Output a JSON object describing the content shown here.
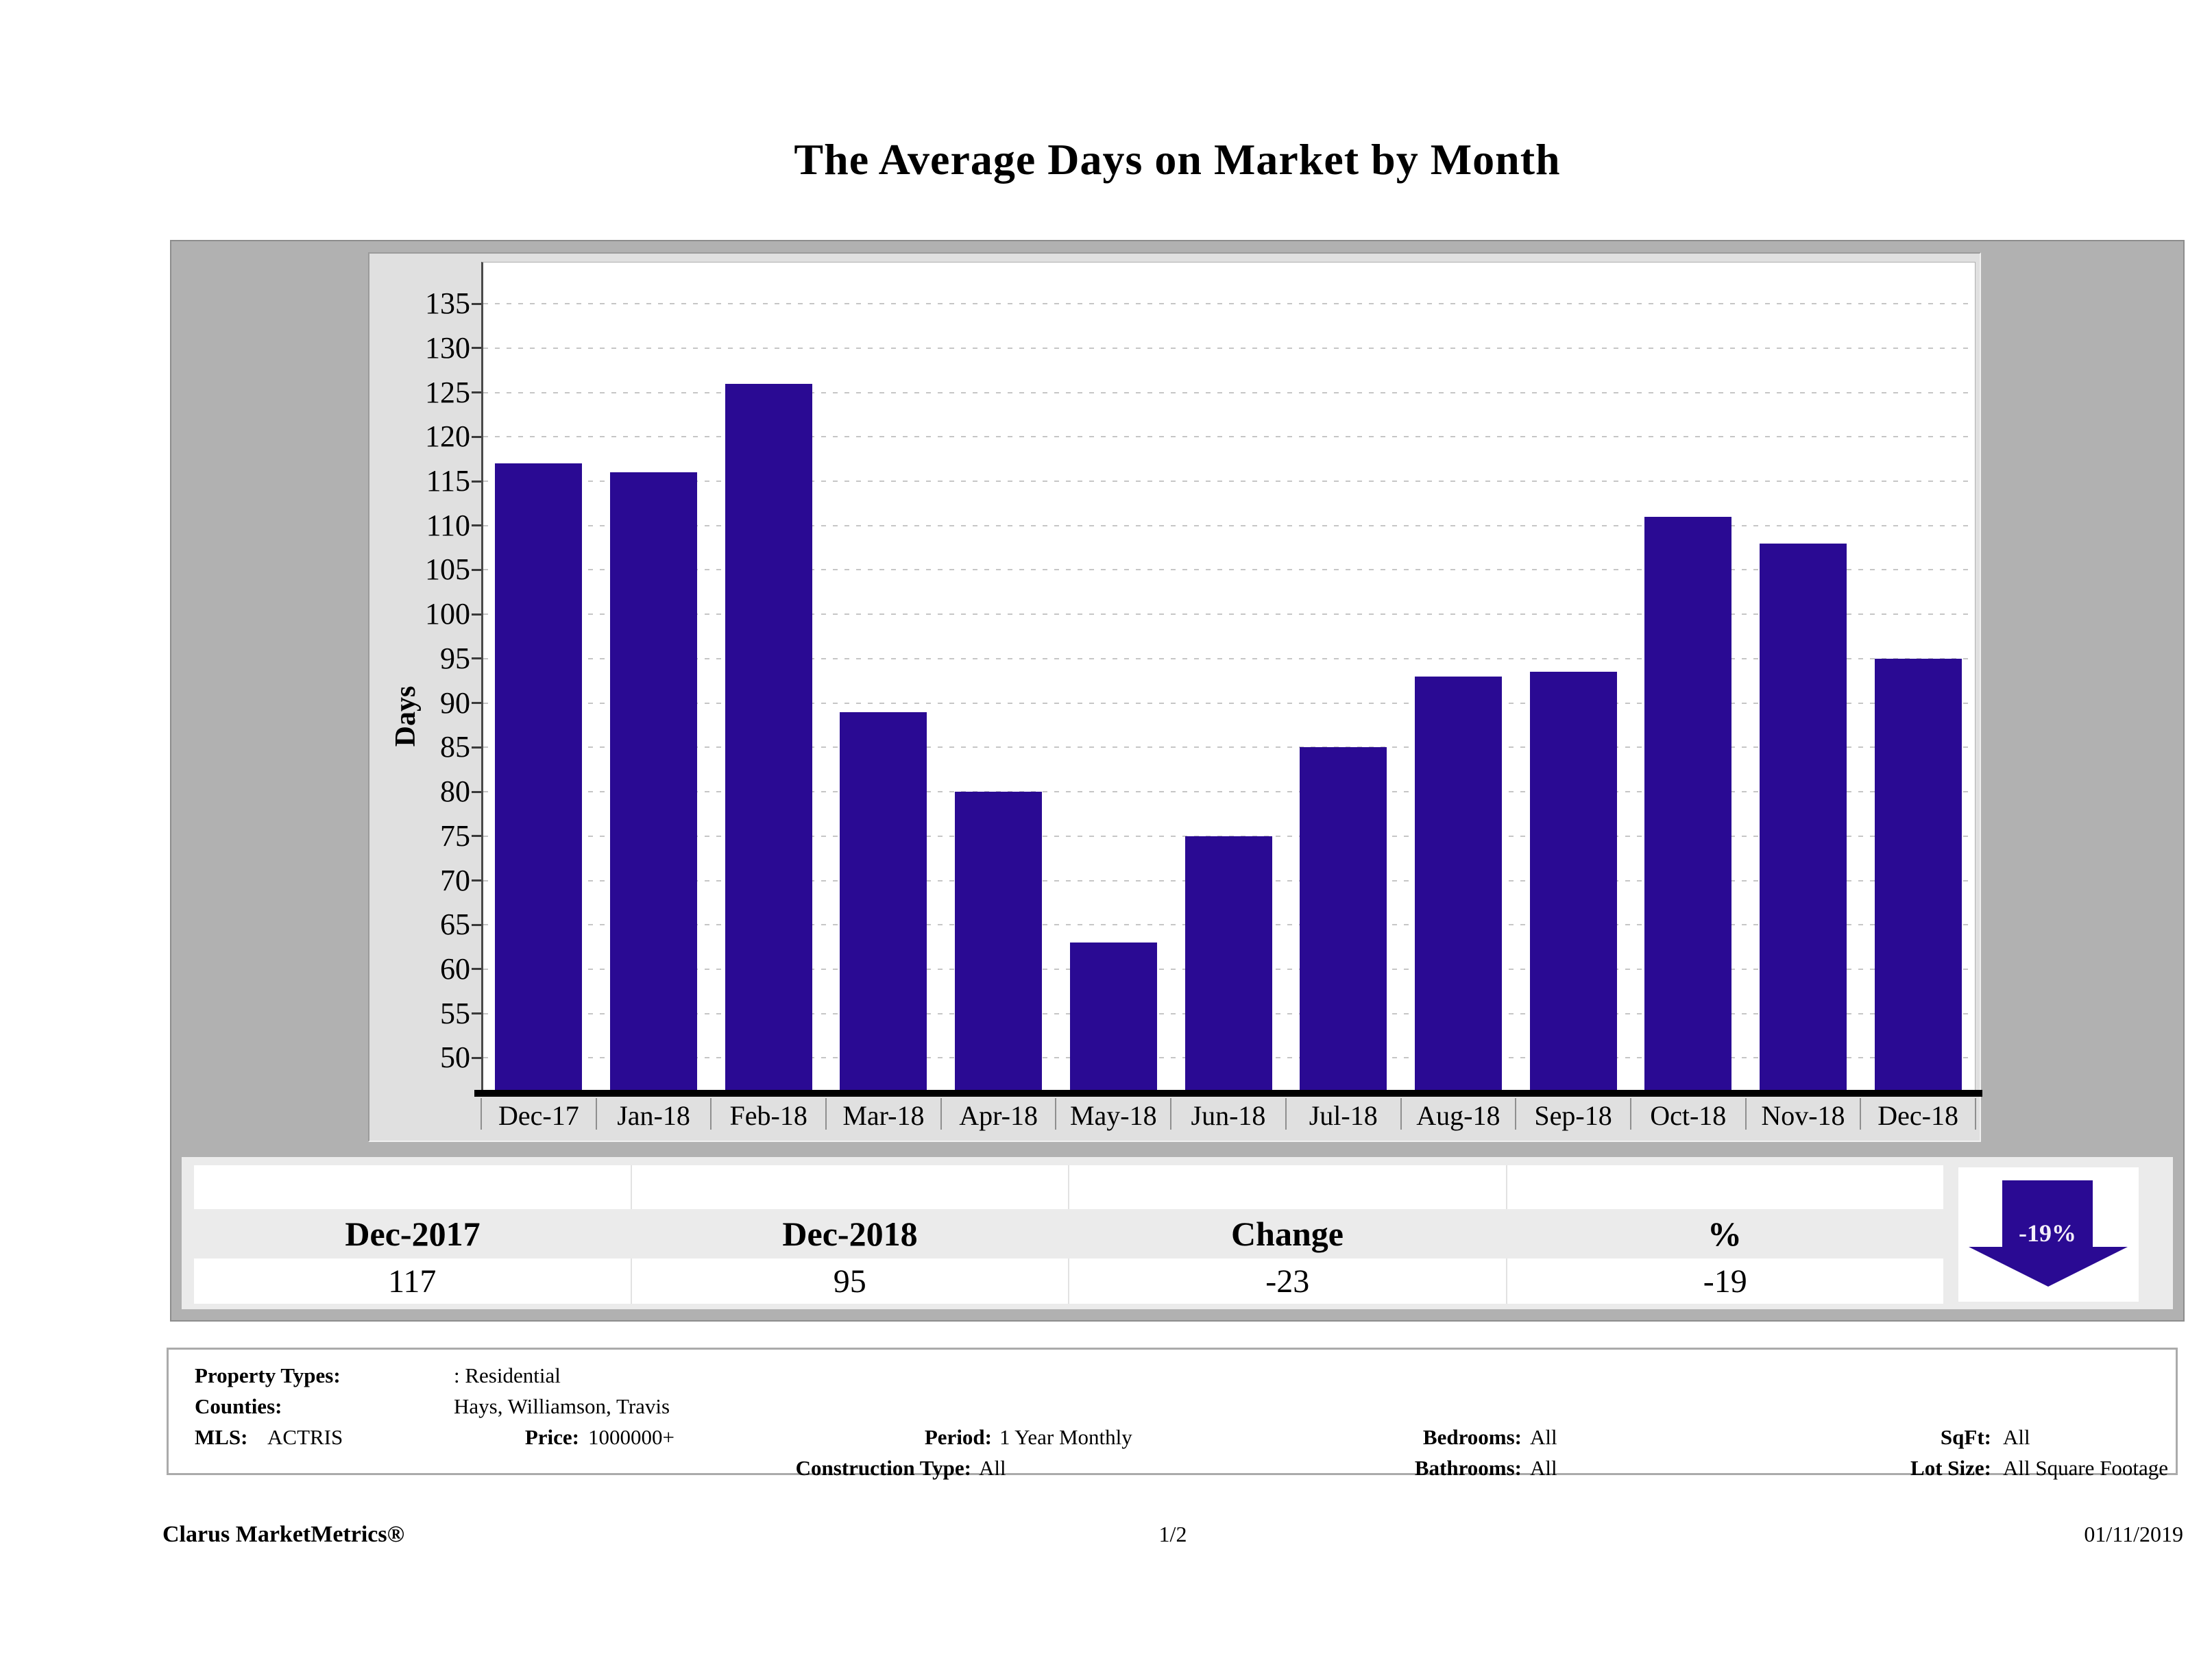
{
  "page": {
    "title": "The Average Days on Market by Month",
    "footer": {
      "brand": "Clarus MarketMetrics®",
      "page_number": "1/2",
      "date": "01/11/2019"
    }
  },
  "chart_data": {
    "type": "bar",
    "title": "The Average Days on Market by Month",
    "xlabel": "",
    "ylabel": "Days",
    "categories": [
      "Dec-17",
      "Jan-18",
      "Feb-18",
      "Mar-18",
      "Apr-18",
      "May-18",
      "Jun-18",
      "Jul-18",
      "Aug-18",
      "Sep-18",
      "Oct-18",
      "Nov-18",
      "Dec-18"
    ],
    "values": [
      117,
      116,
      126,
      89,
      80,
      63,
      75,
      85,
      93,
      93.5,
      111,
      108,
      95
    ],
    "yticks": [
      50,
      55,
      60,
      65,
      70,
      75,
      80,
      85,
      90,
      95,
      100,
      105,
      110,
      115,
      120,
      125,
      130,
      135
    ],
    "ylim": [
      46.4,
      138
    ],
    "grid": "horizontal-dashed",
    "legend_position": "none",
    "bar_color": "#2a0a93"
  },
  "summary_table": {
    "columns": [
      "Dec-2017",
      "Dec-2018",
      "Change",
      "%"
    ],
    "values": [
      "117",
      "95",
      "-23",
      "-19"
    ],
    "indicator": {
      "label": "-19%",
      "direction": "down",
      "color": "#2a0a93"
    }
  },
  "filters": {
    "property_types_label": "Property Types:",
    "property_types_value": ": Residential",
    "counties_label": "Counties:",
    "counties_value": "Hays, Williamson, Travis",
    "mls_label": "MLS:",
    "mls_value": "ACTRIS",
    "price_label": "Price:",
    "price_value": "1000000+",
    "period_label": "Period:",
    "period_value": "1 Year Monthly",
    "bedrooms_label": "Bedrooms:",
    "bedrooms_value": "All",
    "sqft_label": "SqFt:",
    "sqft_value": "All",
    "construction_label": "Construction Type:",
    "construction_value": "All",
    "bathrooms_label": "Bathrooms:",
    "bathrooms_value": "All",
    "lot_size_label": "Lot Size:",
    "lot_size_value": "All Square Footage"
  }
}
